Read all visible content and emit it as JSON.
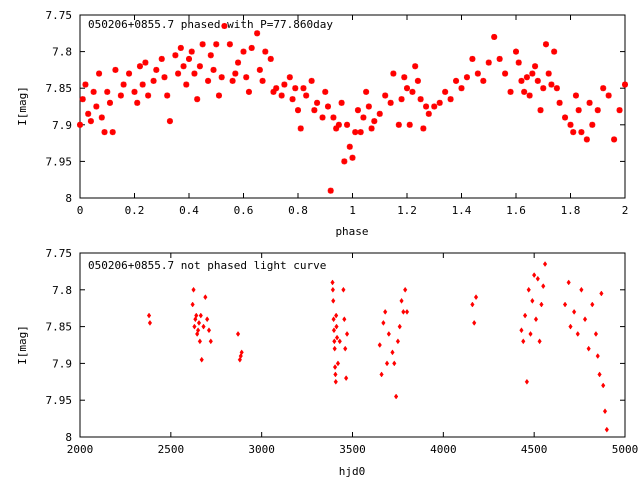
{
  "chart_data": [
    {
      "type": "scatter",
      "title": "050206+0855.7 phased with P=77.860day",
      "xlabel": "phase",
      "ylabel": "I[mag]",
      "xlim": [
        0,
        2
      ],
      "ylim": [
        8,
        7.75
      ],
      "y_inverted": true,
      "x_ticks": [
        0,
        0.2,
        0.4,
        0.6,
        0.8,
        1,
        1.2,
        1.4,
        1.6,
        1.8,
        2
      ],
      "x_tick_labels": [
        "0",
        "0.2",
        "0.4",
        "0.6",
        "0.8",
        "1",
        "1.2",
        "1.4",
        "1.6",
        "1.8",
        "2"
      ],
      "y_ticks": [
        7.75,
        7.8,
        7.85,
        7.9,
        7.95,
        8
      ],
      "y_tick_labels": [
        "7.75",
        "7.8",
        "7.85",
        "7.9",
        "7.95",
        "8"
      ],
      "grid": false,
      "marker_color": "#ff0000",
      "series": [
        {
          "x": [
            0.0,
            0.01,
            0.02,
            0.03,
            0.04,
            0.05,
            0.06,
            0.07,
            0.08,
            0.09,
            0.1,
            0.11,
            0.12,
            0.13,
            0.15,
            0.16,
            0.18,
            0.2,
            0.21,
            0.22,
            0.23,
            0.24,
            0.25,
            0.27,
            0.28,
            0.3,
            0.31,
            0.32,
            0.33,
            0.35,
            0.36,
            0.37,
            0.38,
            0.39,
            0.4,
            0.41,
            0.42,
            0.43,
            0.44,
            0.45,
            0.47,
            0.48,
            0.49,
            0.5,
            0.51,
            0.52,
            0.53,
            0.55,
            0.56,
            0.57,
            0.58,
            0.6,
            0.61,
            0.62,
            0.63,
            0.65,
            0.66,
            0.67,
            0.68,
            0.7,
            0.71,
            0.72,
            0.74,
            0.75,
            0.77,
            0.78,
            0.79,
            0.8,
            0.81,
            0.82,
            0.83,
            0.85,
            0.86,
            0.87,
            0.89,
            0.9,
            0.91,
            0.92,
            0.93,
            0.94,
            0.95,
            0.96,
            0.97,
            0.98,
            0.99,
            1.0,
            1.01,
            1.02,
            1.03,
            1.04,
            1.05,
            1.06,
            1.07,
            1.08,
            1.1,
            1.12,
            1.14,
            1.15,
            1.17,
            1.18,
            1.19,
            1.2,
            1.21,
            1.22,
            1.23,
            1.24,
            1.25,
            1.26,
            1.27,
            1.28,
            1.3,
            1.32,
            1.34,
            1.36,
            1.38,
            1.4,
            1.42,
            1.44,
            1.46,
            1.48,
            1.5,
            1.52,
            1.54,
            1.56,
            1.58,
            1.6,
            1.61,
            1.62,
            1.63,
            1.64,
            1.65,
            1.66,
            1.67,
            1.68,
            1.69,
            1.7,
            1.71,
            1.72,
            1.73,
            1.74,
            1.75,
            1.76,
            1.78,
            1.8,
            1.81,
            1.82,
            1.83,
            1.84,
            1.86,
            1.87,
            1.88,
            1.9,
            1.92,
            1.94,
            1.96,
            1.98,
            2.0
          ],
          "y": [
            7.9,
            7.865,
            7.845,
            7.885,
            7.895,
            7.855,
            7.875,
            7.83,
            7.89,
            7.91,
            7.855,
            7.87,
            7.91,
            7.825,
            7.86,
            7.845,
            7.83,
            7.855,
            7.87,
            7.82,
            7.845,
            7.815,
            7.86,
            7.84,
            7.825,
            7.81,
            7.835,
            7.86,
            7.895,
            7.805,
            7.83,
            7.795,
            7.82,
            7.845,
            7.81,
            7.8,
            7.83,
            7.865,
            7.82,
            7.79,
            7.84,
            7.805,
            7.825,
            7.79,
            7.86,
            7.835,
            7.765,
            7.79,
            7.84,
            7.83,
            7.815,
            7.8,
            7.835,
            7.855,
            7.795,
            7.775,
            7.825,
            7.84,
            7.8,
            7.81,
            7.855,
            7.85,
            7.86,
            7.845,
            7.835,
            7.865,
            7.85,
            7.88,
            7.905,
            7.85,
            7.86,
            7.84,
            7.88,
            7.87,
            7.89,
            7.855,
            7.875,
            7.99,
            7.89,
            7.905,
            7.9,
            7.87,
            7.95,
            7.9,
            7.93,
            7.945,
            7.91,
            7.88,
            7.91,
            7.89,
            7.855,
            7.875,
            7.905,
            7.895,
            7.885,
            7.86,
            7.87,
            7.83,
            7.9,
            7.865,
            7.835,
            7.85,
            7.9,
            7.855,
            7.82,
            7.84,
            7.865,
            7.905,
            7.875,
            7.885,
            7.875,
            7.87,
            7.855,
            7.865,
            7.84,
            7.85,
            7.835,
            7.81,
            7.83,
            7.84,
            7.815,
            7.78,
            7.81,
            7.83,
            7.855,
            7.8,
            7.815,
            7.84,
            7.855,
            7.835,
            7.86,
            7.83,
            7.82,
            7.84,
            7.88,
            7.85,
            7.79,
            7.83,
            7.845,
            7.8,
            7.85,
            7.87,
            7.89,
            7.9,
            7.91,
            7.86,
            7.88,
            7.91,
            7.92,
            7.87,
            7.9,
            7.88,
            7.85,
            7.86,
            7.92,
            7.88,
            7.845
          ]
        }
      ]
    },
    {
      "type": "scatter",
      "title": "050206+0855.7 not phased light curve",
      "xlabel": "hjd0",
      "ylabel": "I[mag]",
      "xlim": [
        2000,
        5000
      ],
      "ylim": [
        8,
        7.75
      ],
      "y_inverted": true,
      "x_ticks": [
        2000,
        2500,
        3000,
        3500,
        4000,
        4500,
        5000
      ],
      "x_tick_labels": [
        "2000",
        "2500",
        "3000",
        "3500",
        "4000",
        "4500",
        "5000"
      ],
      "y_ticks": [
        7.75,
        7.8,
        7.85,
        7.9,
        7.95,
        8
      ],
      "y_tick_labels": [
        "7.75",
        "7.8",
        "7.85",
        "7.9",
        "7.95",
        "8"
      ],
      "grid": false,
      "marker_color": "#ff0000",
      "series": [
        {
          "x": [
            2380,
            2385,
            2620,
            2625,
            2630,
            2635,
            2640,
            2645,
            2650,
            2655,
            2660,
            2665,
            2670,
            2680,
            2690,
            2700,
            2710,
            2720,
            2870,
            2880,
            2885,
            2890,
            3390,
            3392,
            3394,
            3396,
            3398,
            3400,
            3402,
            3404,
            3406,
            3408,
            3410,
            3412,
            3415,
            3420,
            3430,
            3450,
            3455,
            3460,
            3465,
            3470,
            3650,
            3660,
            3670,
            3680,
            3690,
            3700,
            3720,
            3730,
            3740,
            3750,
            3760,
            3770,
            3780,
            3790,
            3800,
            4160,
            4170,
            4180,
            4430,
            4440,
            4450,
            4460,
            4470,
            4480,
            4490,
            4500,
            4510,
            4520,
            4530,
            4540,
            4550,
            4560,
            4670,
            4690,
            4700,
            4720,
            4740,
            4760,
            4780,
            4800,
            4820,
            4840,
            4850,
            4860,
            4870,
            4880,
            4890,
            4900
          ],
          "y": [
            7.835,
            7.845,
            7.82,
            7.8,
            7.85,
            7.84,
            7.835,
            7.86,
            7.855,
            7.845,
            7.87,
            7.835,
            7.895,
            7.85,
            7.81,
            7.84,
            7.855,
            7.87,
            7.86,
            7.895,
            7.89,
            7.885,
            7.79,
            7.8,
            7.815,
            7.84,
            7.855,
            7.87,
            7.88,
            7.905,
            7.915,
            7.925,
            7.835,
            7.85,
            7.865,
            7.9,
            7.87,
            7.8,
            7.84,
            7.88,
            7.92,
            7.86,
            7.875,
            7.915,
            7.845,
            7.83,
            7.9,
            7.86,
            7.885,
            7.9,
            7.945,
            7.87,
            7.85,
            7.815,
            7.83,
            7.8,
            7.83,
            7.82,
            7.845,
            7.81,
            7.855,
            7.87,
            7.835,
            7.925,
            7.8,
            7.86,
            7.815,
            7.78,
            7.84,
            7.785,
            7.87,
            7.82,
            7.795,
            7.765,
            7.82,
            7.79,
            7.85,
            7.83,
            7.86,
            7.8,
            7.84,
            7.88,
            7.82,
            7.86,
            7.89,
            7.915,
            7.805,
            7.93,
            7.965,
            7.99
          ]
        }
      ]
    }
  ]
}
